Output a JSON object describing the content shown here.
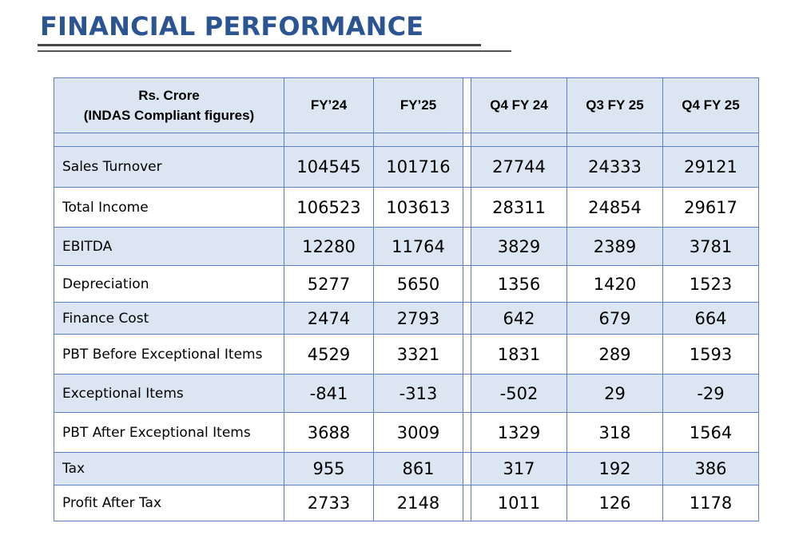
{
  "title": "FINANCIAL PERFORMANCE",
  "table": {
    "header": {
      "label_line1": "Rs. Crore",
      "label_line2": "(INDAS Compliant figures)",
      "columns": [
        "FY’24",
        "FY’25",
        "Q4 FY 24",
        "Q3 FY 25",
        "Q4 FY 25"
      ]
    },
    "rows": [
      {
        "label": "Sales Turnover",
        "values": [
          "104545",
          "101716",
          "27744",
          "24333",
          "29121"
        ]
      },
      {
        "label": "Total Income",
        "values": [
          "106523",
          "103613",
          "28311",
          "24854",
          "29617"
        ]
      },
      {
        "label": "EBITDA",
        "values": [
          "12280",
          "11764",
          "3829",
          "2389",
          "3781"
        ]
      },
      {
        "label": "Depreciation",
        "values": [
          "5277",
          "5650",
          "1356",
          "1420",
          "1523"
        ]
      },
      {
        "label": "Finance Cost",
        "values": [
          "2474",
          "2793",
          "642",
          "679",
          "664"
        ]
      },
      {
        "label": "PBT Before Exceptional Items",
        "values": [
          "4529",
          "3321",
          "1831",
          "289",
          "1593"
        ]
      },
      {
        "label": "Exceptional Items",
        "values": [
          "-841",
          "-313",
          "-502",
          "29",
          "-29"
        ]
      },
      {
        "label": "PBT After Exceptional Items",
        "values": [
          "3688",
          "3009",
          "1329",
          "318",
          "1564"
        ]
      },
      {
        "label": "Tax",
        "values": [
          "955",
          "861",
          "317",
          "192",
          "386"
        ]
      },
      {
        "label": "Profit After Tax",
        "values": [
          "2733",
          "2148",
          "1011",
          "126",
          "1178"
        ]
      }
    ]
  },
  "colors": {
    "title": "#2b5592",
    "row_shade": "#dce6f2",
    "border": "#5b7fc0"
  }
}
